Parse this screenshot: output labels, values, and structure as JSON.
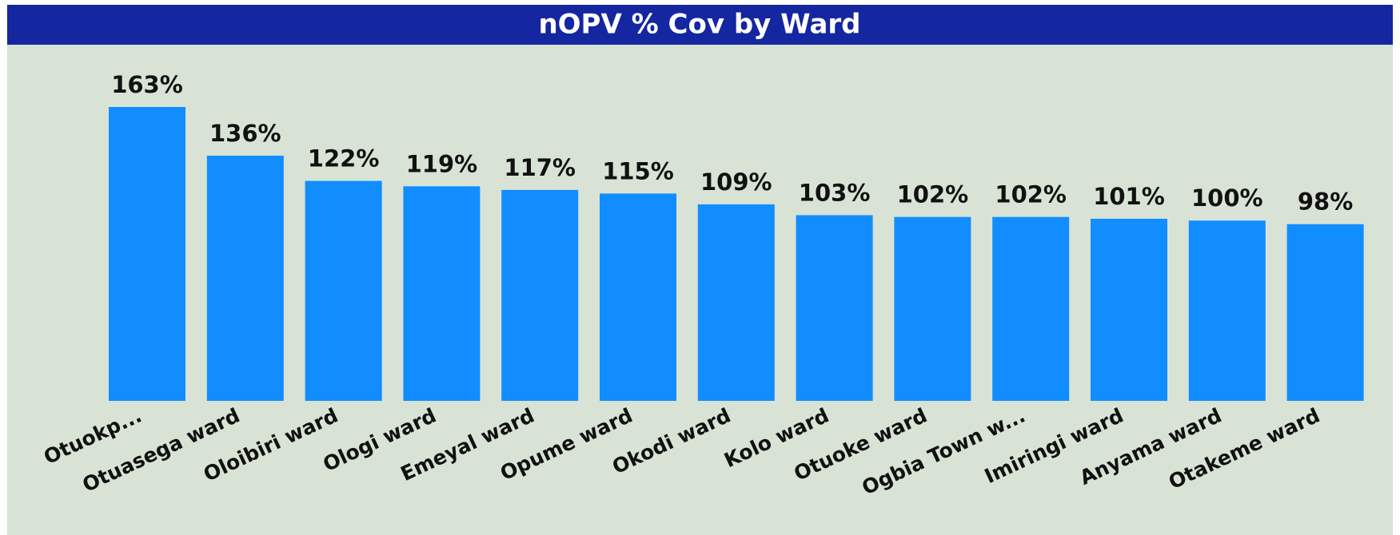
{
  "chart_data": {
    "type": "bar",
    "title": "nOPV % Cov by Ward",
    "categories": [
      "Otuokp...",
      "Otuasega ward",
      "Oloibiri ward",
      "Ologi ward",
      "Emeyal ward",
      "Opume ward",
      "Okodi ward",
      "Kolo ward",
      "Otuoke ward",
      "Ogbia Town w...",
      "Imiringi ward",
      "Anyama ward",
      "Otakeme ward"
    ],
    "values": [
      163,
      136,
      122,
      119,
      117,
      115,
      109,
      103,
      102,
      102,
      101,
      100,
      98
    ],
    "value_labels": [
      "163%",
      "136%",
      "122%",
      "119%",
      "117%",
      "115%",
      "109%",
      "103%",
      "102%",
      "102%",
      "101%",
      "100%",
      "98%"
    ],
    "color": "#118dff"
  }
}
